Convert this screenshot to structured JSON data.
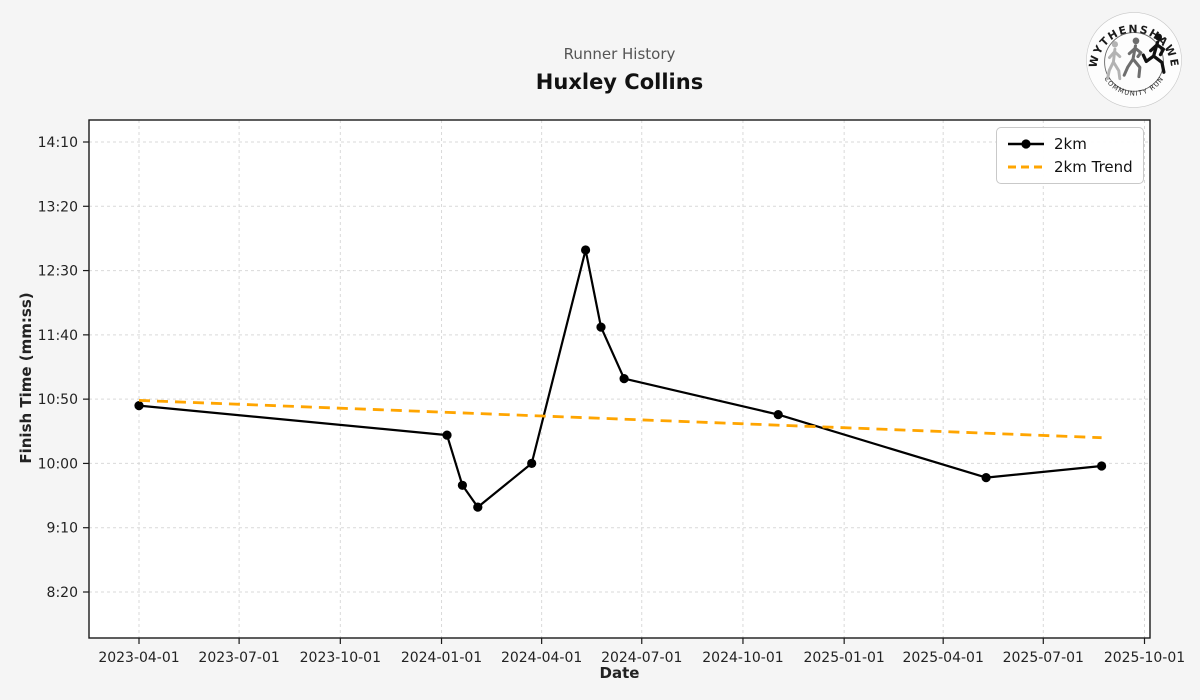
{
  "header": {
    "subtitle": "Runner History",
    "title": "Huxley Collins"
  },
  "logo": {
    "top_text": "WYTHENSHAWE",
    "bottom_text": "COMMUNITY RUN"
  },
  "chart_data": {
    "type": "line",
    "title": "Huxley Collins",
    "subtitle": "Runner History",
    "xlabel": "Date",
    "ylabel": "Finish Time (mm:ss)",
    "grid": true,
    "legend_position": "upper right",
    "x_ticks": [
      "2023-04-01",
      "2023-07-01",
      "2023-10-01",
      "2024-01-01",
      "2024-04-01",
      "2024-07-01",
      "2024-10-01",
      "2025-01-01",
      "2025-04-01",
      "2025-07-01",
      "2025-10-01"
    ],
    "y_ticks": [
      {
        "label": "14:10",
        "seconds": 850
      },
      {
        "label": "13:20",
        "seconds": 800
      },
      {
        "label": "12:30",
        "seconds": 750
      },
      {
        "label": "11:40",
        "seconds": 700
      },
      {
        "label": "10:50",
        "seconds": 650
      },
      {
        "label": "10:00",
        "seconds": 600
      },
      {
        "label": "9:10",
        "seconds": 550
      },
      {
        "label": "8:20",
        "seconds": 500
      }
    ],
    "series": [
      {
        "name": "2km",
        "style": "solid",
        "marker": "circle",
        "color": "#000000",
        "points": [
          {
            "date": "2023-04-01",
            "time": "10:45"
          },
          {
            "date": "2024-01-06",
            "time": "10:22"
          },
          {
            "date": "2024-01-20",
            "time": "9:43"
          },
          {
            "date": "2024-02-03",
            "time": "9:26"
          },
          {
            "date": "2024-03-23",
            "time": "10:00"
          },
          {
            "date": "2024-05-11",
            "time": "12:46"
          },
          {
            "date": "2024-05-25",
            "time": "11:46"
          },
          {
            "date": "2024-06-15",
            "time": "11:06"
          },
          {
            "date": "2024-11-02",
            "time": "10:38"
          },
          {
            "date": "2025-05-10",
            "time": "9:49"
          },
          {
            "date": "2025-08-23",
            "time": "9:58"
          }
        ]
      },
      {
        "name": "2km Trend",
        "style": "dashed",
        "marker": "none",
        "color": "#FFA500",
        "points": [
          {
            "date": "2023-04-01",
            "time": "10:49"
          },
          {
            "date": "2025-08-23",
            "time": "10:20"
          }
        ]
      }
    ],
    "colors": {
      "figure_background": "#f5f5f5",
      "plot_background": "#ffffff",
      "gridline": "#d9d9d9",
      "frame": "#1a1a1a",
      "tick_text": "#222222"
    }
  }
}
